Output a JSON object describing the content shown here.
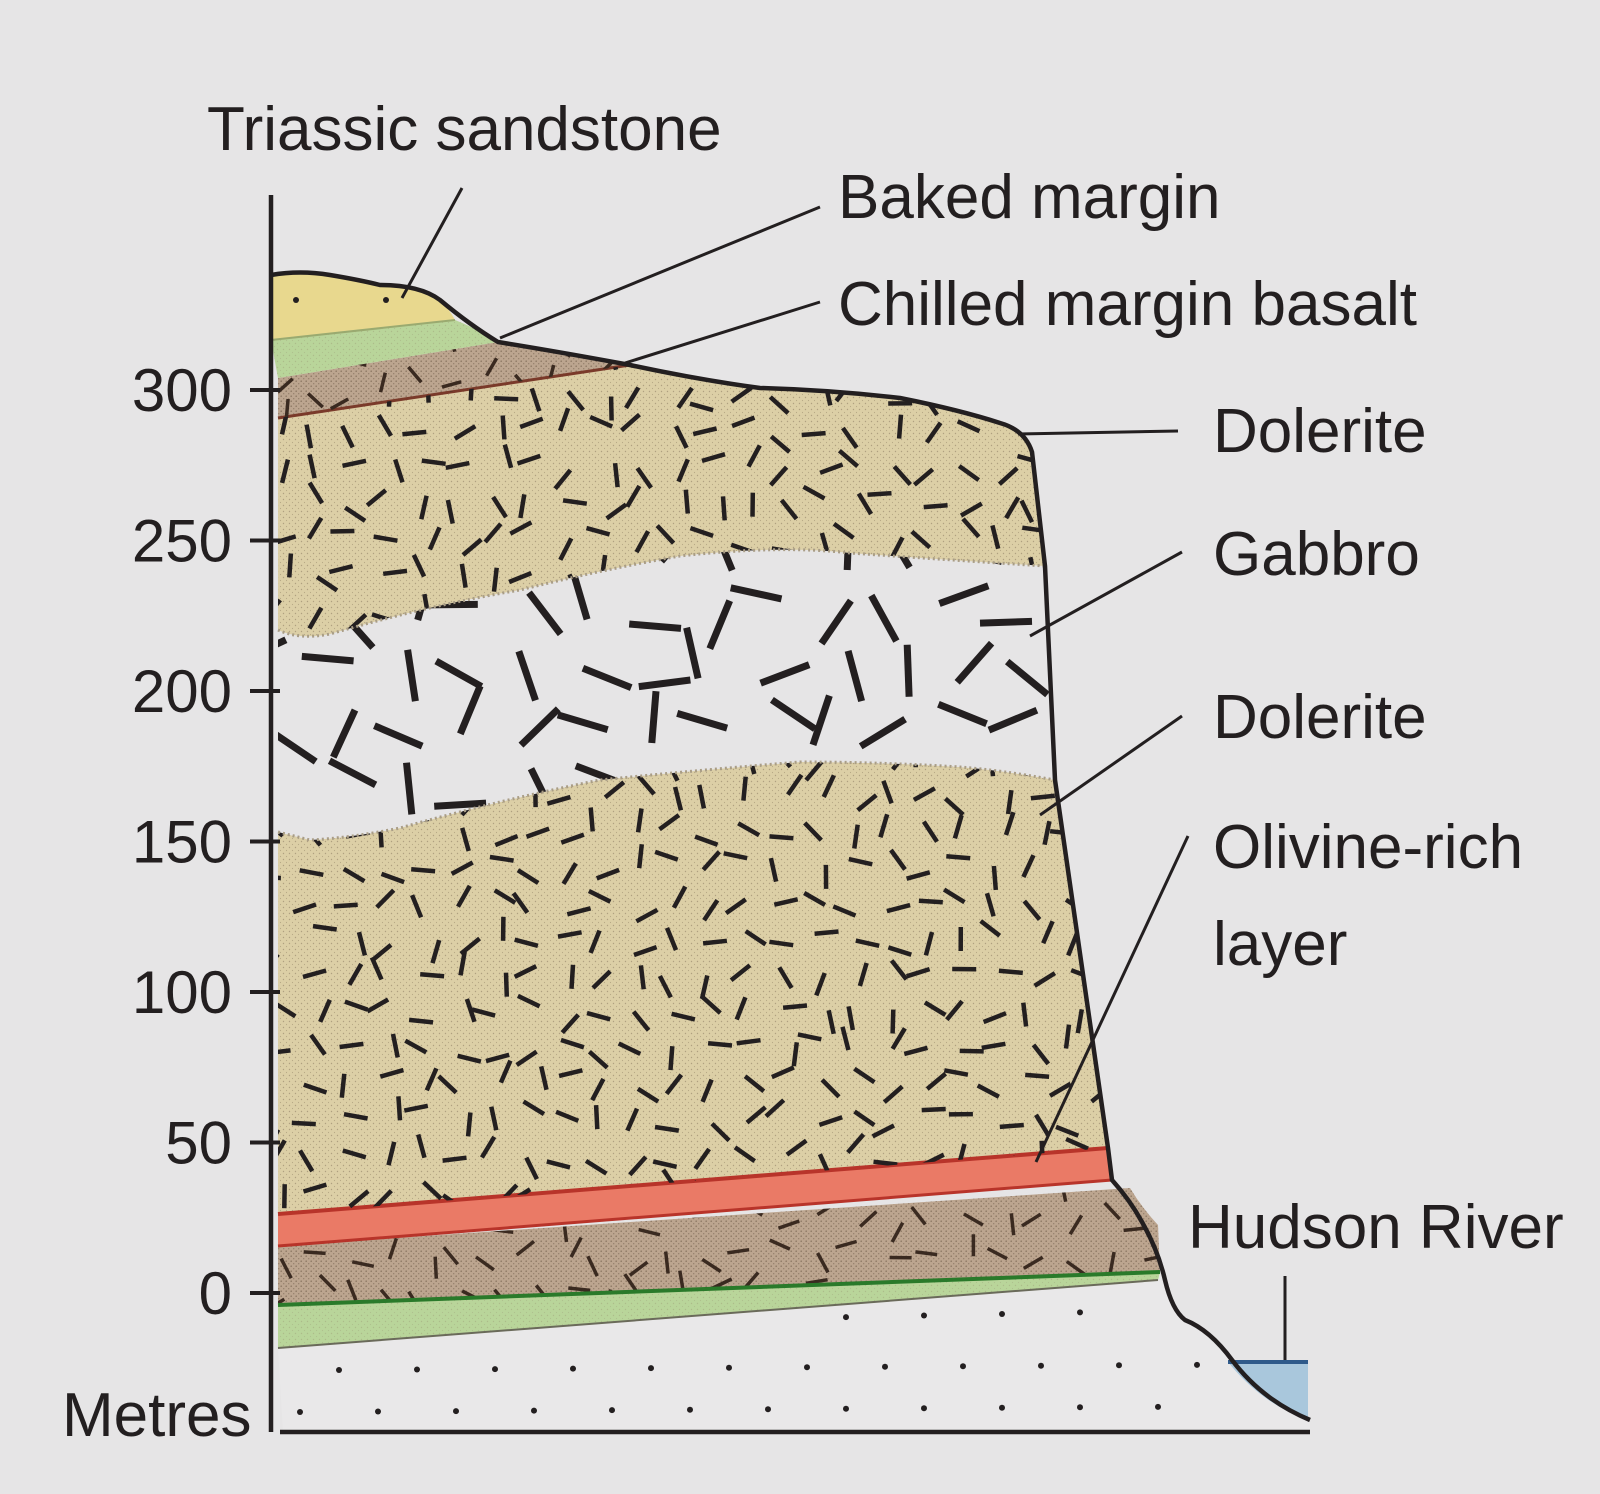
{
  "axis": {
    "unit": "Metres",
    "ticks": [
      "300",
      "250",
      "200",
      "150",
      "100",
      "50",
      "0"
    ]
  },
  "labels": {
    "triassic_sandstone": "Triassic sandstone",
    "baked_margin": "Baked margin",
    "chilled_margin_basalt": "Chilled margin basalt",
    "dolerite_upper": "Dolerite",
    "gabbro": "Gabbro",
    "dolerite_lower": "Dolerite",
    "olivine_rich_line1": "Olivine-rich",
    "olivine_rich_line2": "layer",
    "hudson_river": "Hudson River"
  },
  "colors": {
    "background": "#e6e5e6",
    "sandstone": "#e8d88e",
    "baked_margin": "#b9d59a",
    "chilled_margin": "#bca58f",
    "dolerite": "#dccfa6",
    "gabbro": "#e6e5e6",
    "olivine_layer": "#ea7a66",
    "base_sediment": "#e9e8e9",
    "river": "#a9c7dc"
  }
}
